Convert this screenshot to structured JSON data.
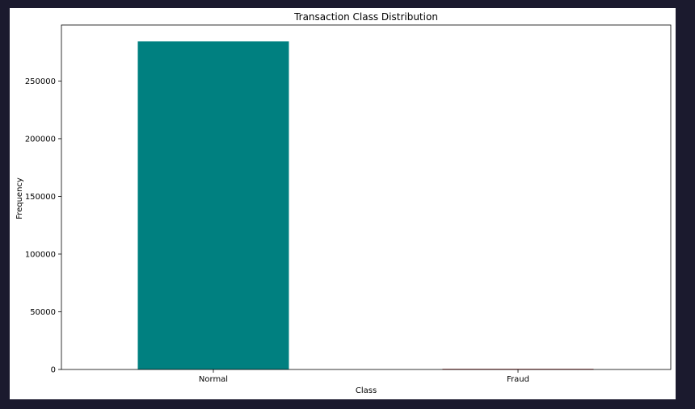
{
  "chart_data": {
    "type": "bar",
    "title": "Transaction Class Distribution",
    "xlabel": "Class",
    "ylabel": "Frequency",
    "categories": [
      "Normal",
      "Fraud"
    ],
    "values": [
      284315,
      492
    ],
    "colors": [
      "#008080",
      "#8b0000"
    ],
    "ylim": [
      0,
      298530
    ],
    "yticks": [
      0,
      50000,
      100000,
      150000,
      200000,
      250000
    ],
    "ytick_labels": [
      "0",
      "50000",
      "100000",
      "150000",
      "200000",
      "250000"
    ],
    "grid": false,
    "legend": "none"
  }
}
